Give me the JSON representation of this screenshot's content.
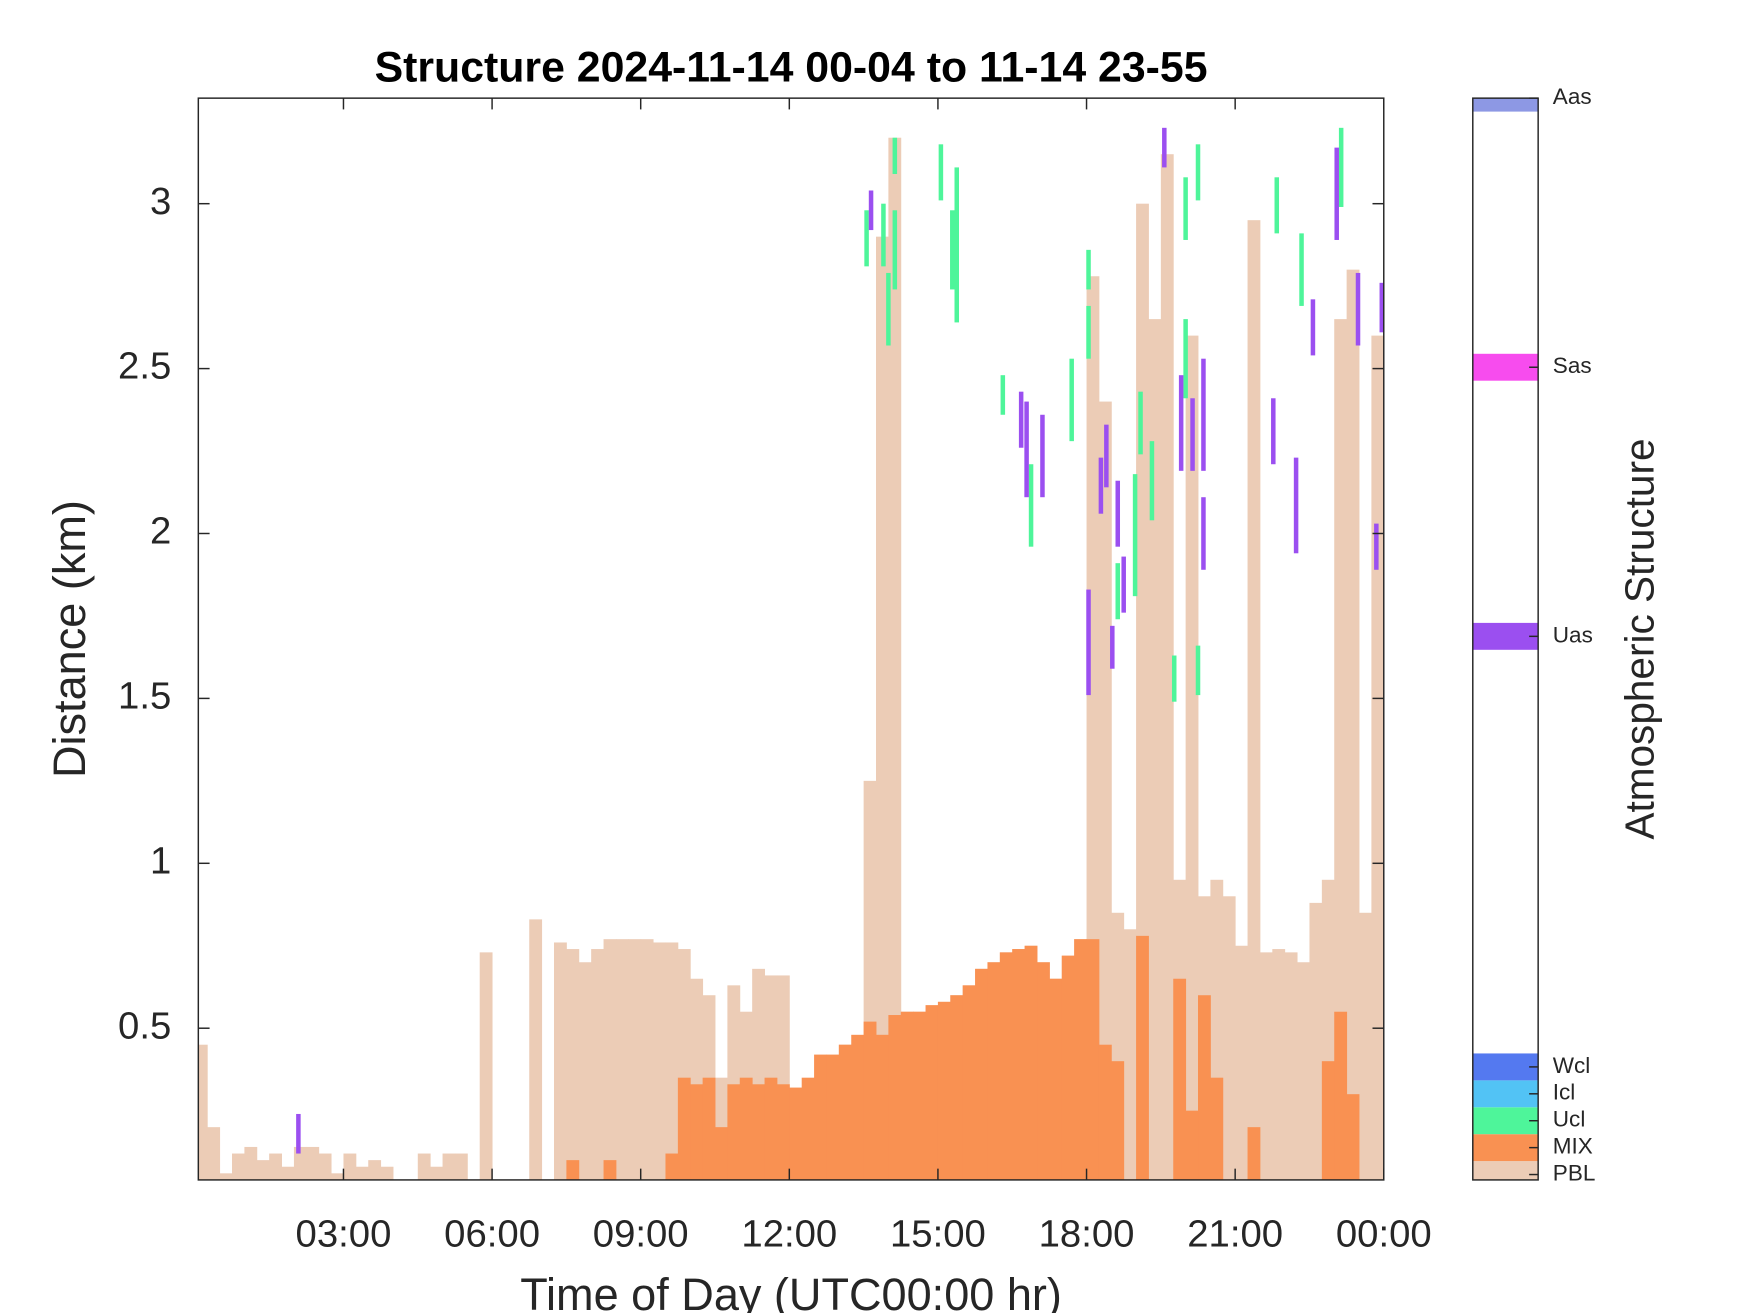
{
  "chart_data": {
    "type": "bar",
    "title": "Structure 2024-11-14 00-04 to 11-14 23-55",
    "x_label": "Time of Day (UTC00:00 hr)",
    "y_label": "Distance (km)",
    "xlim": [
      0.07,
      24
    ],
    "ylim": [
      0.04,
      3.32
    ],
    "xticks": [
      {
        "value": 3,
        "label": "03:00"
      },
      {
        "value": 6,
        "label": "06:00"
      },
      {
        "value": 9,
        "label": "09:00"
      },
      {
        "value": 12,
        "label": "12:00"
      },
      {
        "value": 15,
        "label": "15:00"
      },
      {
        "value": 18,
        "label": "18:00"
      },
      {
        "value": 21,
        "label": "21:00"
      },
      {
        "value": 24,
        "label": "00:00"
      }
    ],
    "yticks": [
      0.5,
      1,
      1.5,
      2,
      2.5,
      3
    ],
    "x": [
      0,
      0.25,
      0.5,
      0.75,
      1,
      1.25,
      1.5,
      1.75,
      2,
      2.25,
      2.5,
      2.75,
      3,
      3.25,
      3.5,
      3.75,
      4,
      4.25,
      4.5,
      4.75,
      5,
      5.25,
      5.5,
      5.75,
      6,
      6.25,
      6.5,
      6.75,
      7,
      7.25,
      7.5,
      7.75,
      8,
      8.25,
      8.5,
      8.75,
      9,
      9.25,
      9.5,
      9.75,
      10,
      10.25,
      10.5,
      10.75,
      11,
      11.25,
      11.5,
      11.75,
      12,
      12.25,
      12.5,
      12.75,
      13,
      13.25,
      13.5,
      13.75,
      14,
      14.25,
      14.5,
      14.75,
      15,
      15.25,
      15.5,
      15.75,
      16,
      16.25,
      16.5,
      16.75,
      17,
      17.25,
      17.5,
      17.75,
      18,
      18.25,
      18.5,
      18.75,
      19,
      19.25,
      19.5,
      19.75,
      20,
      20.25,
      20.5,
      20.75,
      21,
      21.25,
      21.5,
      21.75,
      22,
      22.25,
      22.5,
      22.75,
      23,
      23.25,
      23.5,
      23.75
    ],
    "series": [
      {
        "name": "PBL",
        "values": [
          0.45,
          0.2,
          0.06,
          0.12,
          0.14,
          0.1,
          0.12,
          0.08,
          0.14,
          0.14,
          0.12,
          0.06,
          0.12,
          0.08,
          0.1,
          0.08,
          null,
          null,
          0.12,
          0.08,
          0.12,
          0.12,
          null,
          0.73,
          null,
          null,
          null,
          0.83,
          null,
          0.76,
          0.74,
          0.7,
          0.74,
          0.77,
          0.77,
          0.77,
          0.77,
          0.76,
          0.76,
          0.74,
          0.65,
          0.6,
          0.35,
          0.63,
          0.55,
          0.68,
          0.66,
          0.66,
          0.3,
          0.3,
          0.35,
          0.4,
          0.45,
          0.45,
          1.25,
          2.9,
          3.2,
          0.55,
          0.55,
          0.55,
          0.58,
          0.6,
          0.63,
          0.68,
          0.7,
          0.73,
          0.74,
          0.75,
          0.7,
          0.65,
          0.72,
          0.77,
          2.78,
          2.4,
          0.85,
          0.8,
          3.0,
          2.65,
          3.15,
          0.95,
          2.6,
          0.9,
          0.95,
          0.9,
          0.75,
          2.95,
          0.73,
          0.74,
          0.73,
          0.7,
          0.88,
          0.95,
          2.65,
          2.8,
          0.85,
          2.6
        ]
      },
      {
        "name": "MIX",
        "values": [
          null,
          null,
          null,
          null,
          null,
          null,
          null,
          null,
          null,
          null,
          null,
          null,
          null,
          null,
          null,
          null,
          null,
          null,
          null,
          null,
          null,
          null,
          null,
          null,
          null,
          null,
          null,
          null,
          null,
          null,
          0.1,
          null,
          null,
          0.1,
          null,
          null,
          null,
          null,
          0.12,
          0.35,
          0.33,
          0.35,
          0.2,
          0.33,
          0.35,
          0.33,
          0.35,
          0.33,
          0.32,
          0.35,
          0.42,
          0.42,
          0.45,
          0.48,
          0.52,
          0.48,
          0.54,
          0.55,
          0.55,
          0.57,
          0.58,
          0.6,
          0.63,
          0.68,
          0.7,
          0.73,
          0.74,
          0.75,
          0.7,
          0.65,
          0.72,
          0.77,
          0.77,
          0.45,
          0.4,
          null,
          0.78,
          null,
          null,
          0.65,
          0.25,
          0.6,
          0.35,
          null,
          null,
          0.2,
          null,
          null,
          null,
          null,
          null,
          0.4,
          0.55,
          0.3,
          null,
          null
        ]
      }
    ],
    "segments": [
      {
        "name": "Ucl",
        "x": [
          13.56,
          13.9,
          14.0,
          14.13,
          14.13,
          15.06,
          15.29,
          15.38,
          16.31,
          16.88,
          17.7,
          18.04,
          18.04,
          18.63,
          18.98,
          19.09,
          19.32,
          19.77,
          20.0,
          20.0,
          20.25,
          20.25,
          21.84,
          22.34,
          23.14
        ],
        "base": [
          2.81,
          2.81,
          2.57,
          3.09,
          2.74,
          3.01,
          2.74,
          2.64,
          2.36,
          1.96,
          2.28,
          2.74,
          2.53,
          1.74,
          1.81,
          2.24,
          2.04,
          1.49,
          2.89,
          2.41,
          3.01,
          1.51,
          2.91,
          2.69,
          2.99
        ],
        "values": [
          2.98,
          3.0,
          2.79,
          3.2,
          2.98,
          3.18,
          2.98,
          3.11,
          2.48,
          2.21,
          2.53,
          2.86,
          2.69,
          1.91,
          2.18,
          2.43,
          2.28,
          1.63,
          3.08,
          2.65,
          3.18,
          1.66,
          3.08,
          2.91,
          3.23
        ]
      },
      {
        "name": "Uas",
        "x": [
          2.09,
          13.65,
          16.68,
          16.79,
          17.11,
          18.04,
          18.29,
          18.4,
          18.52,
          18.63,
          18.75,
          19.57,
          19.91,
          20.14,
          20.36,
          20.36,
          21.77,
          22.23,
          22.57,
          23.05,
          23.48,
          23.85,
          23.96
        ],
        "base": [
          0.12,
          2.92,
          2.26,
          2.11,
          2.11,
          1.51,
          2.06,
          2.14,
          1.59,
          1.96,
          1.76,
          3.11,
          2.19,
          2.19,
          2.19,
          1.89,
          2.21,
          1.94,
          2.54,
          2.89,
          2.57,
          1.89,
          2.61
        ],
        "values": [
          0.24,
          3.04,
          2.43,
          2.4,
          2.36,
          1.83,
          2.23,
          2.33,
          1.72,
          2.16,
          1.93,
          3.23,
          2.48,
          2.41,
          2.53,
          2.11,
          2.41,
          2.23,
          2.71,
          3.17,
          2.79,
          2.03,
          2.76
        ]
      }
    ],
    "colorbar": {
      "label": "Atmospheric Structure",
      "clim": [
        0.8,
        41
      ],
      "ticks": [
        {
          "value": 1,
          "label": "PBL",
          "color": "#ecccb6"
        },
        {
          "value": 2,
          "label": "MIX",
          "color": "#f99152"
        },
        {
          "value": 3,
          "label": "Ucl",
          "color": "#4ef59a"
        },
        {
          "value": 4,
          "label": "Icl",
          "color": "#52c3f5"
        },
        {
          "value": 5,
          "label": "Wcl",
          "color": "#5479f0"
        },
        {
          "value": 21,
          "label": "Uas",
          "color": "#9b4ff0"
        },
        {
          "value": 31,
          "label": "Sas",
          "color": "#f74cee"
        },
        {
          "value": 41,
          "label": "Aas",
          "color": "#8d98e4"
        }
      ]
    }
  }
}
